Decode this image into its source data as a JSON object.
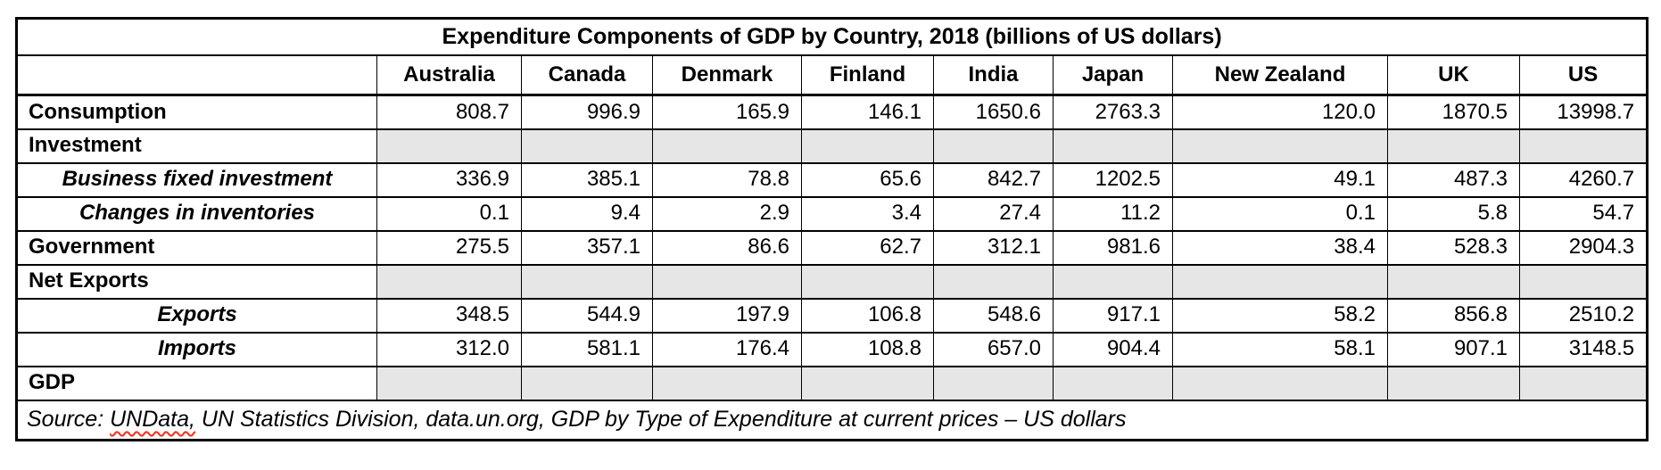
{
  "table": {
    "title": "Expenditure Components of GDP by Country, 2018 (billions of US dollars)",
    "corner_label": "",
    "columns": [
      "Australia",
      "Canada",
      "Denmark",
      "Finland",
      "India",
      "Japan",
      "New Zealand",
      "UK",
      "US"
    ],
    "rows": [
      {
        "label": "Consumption",
        "style": "main",
        "shaded": false,
        "values": [
          "808.7",
          "996.9",
          "165.9",
          "146.1",
          "1650.6",
          "2763.3",
          "120.0",
          "1870.5",
          "13998.7"
        ]
      },
      {
        "label": "Investment",
        "style": "main",
        "shaded": true,
        "values": [
          "",
          "",
          "",
          "",
          "",
          "",
          "",
          "",
          ""
        ]
      },
      {
        "label": "Business fixed investment",
        "style": "sub",
        "shaded": false,
        "values": [
          "336.9",
          "385.1",
          "78.8",
          "65.6",
          "842.7",
          "1202.5",
          "49.1",
          "487.3",
          "4260.7"
        ]
      },
      {
        "label": "Changes in inventories",
        "style": "sub",
        "shaded": false,
        "values": [
          "0.1",
          "9.4",
          "2.9",
          "3.4",
          "27.4",
          "11.2",
          "0.1",
          "5.8",
          "54.7"
        ]
      },
      {
        "label": "Government",
        "style": "main",
        "shaded": false,
        "values": [
          "275.5",
          "357.1",
          "86.6",
          "62.7",
          "312.1",
          "981.6",
          "38.4",
          "528.3",
          "2904.3"
        ]
      },
      {
        "label": "Net Exports",
        "style": "main",
        "shaded": true,
        "values": [
          "",
          "",
          "",
          "",
          "",
          "",
          "",
          "",
          ""
        ]
      },
      {
        "label": "Exports",
        "style": "sub",
        "shaded": false,
        "values": [
          "348.5",
          "544.9",
          "197.9",
          "106.8",
          "548.6",
          "917.1",
          "58.2",
          "856.8",
          "2510.2"
        ]
      },
      {
        "label": "Imports",
        "style": "sub",
        "shaded": false,
        "values": [
          "312.0",
          "581.1",
          "176.4",
          "108.8",
          "657.0",
          "904.4",
          "58.1",
          "907.1",
          "3148.5"
        ]
      },
      {
        "label": "GDP",
        "style": "main",
        "shaded": true,
        "values": [
          "",
          "",
          "",
          "",
          "",
          "",
          "",
          "",
          ""
        ]
      }
    ],
    "source": {
      "prefix": "Source: ",
      "misspelled_word": "UNData,",
      "rest": " UN Statistics Division, data.un.org, GDP by Type of Expenditure at current prices – US dollars"
    }
  },
  "colors": {
    "shaded_cell": "#e6e6e6",
    "border": "#000000",
    "spellcheck_squiggle": "#ff2a1a"
  }
}
